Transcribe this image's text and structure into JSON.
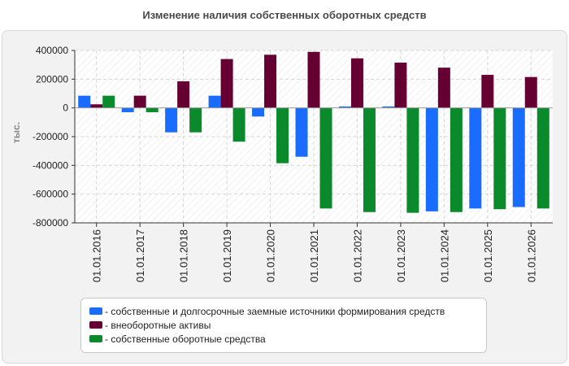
{
  "title": "Изменение наличия собственных оборотных средств",
  "chart_data": {
    "type": "bar",
    "ylabel": "тыс.",
    "ylim": [
      -800000,
      400000
    ],
    "yticks": [
      400000,
      200000,
      0,
      -200000,
      -400000,
      -600000,
      -800000
    ],
    "ytick_labels": [
      "400000",
      "200000",
      "0",
      "-200000",
      "-400000",
      "-600000",
      "-800000"
    ],
    "categories": [
      "01.01.2016",
      "01.01.2017",
      "01.01.2018",
      "01.01.2019",
      "01.01.2020",
      "01.01.2021",
      "01.01.2022",
      "01.01.2023",
      "01.01.2024",
      "01.01.2025",
      "01.01.2026"
    ],
    "series": [
      {
        "name": "- собственные и долгосрочные заемные источники формирования средств",
        "color": "#1a6cff",
        "values": [
          85000,
          -30000,
          -170000,
          85000,
          -60000,
          -340000,
          10000,
          10000,
          -720000,
          -700000,
          -690000
        ]
      },
      {
        "name": "- внеоборотные активы",
        "color": "#660033",
        "values": [
          25000,
          85000,
          185000,
          340000,
          370000,
          390000,
          345000,
          315000,
          280000,
          230000,
          215000
        ]
      },
      {
        "name": "- собственные оборотные средства",
        "color": "#0a8a2a",
        "values": [
          85000,
          -30000,
          -170000,
          -235000,
          -385000,
          -700000,
          -725000,
          -730000,
          -725000,
          -705000,
          -700000
        ]
      }
    ],
    "grid": true,
    "legend_position": "bottom"
  }
}
